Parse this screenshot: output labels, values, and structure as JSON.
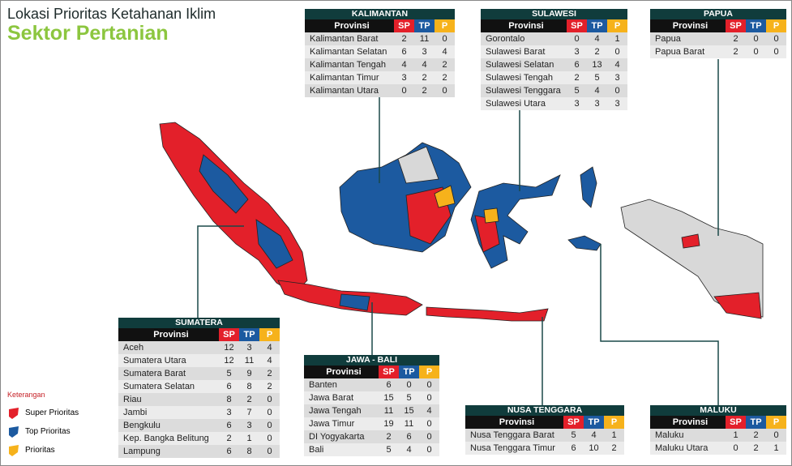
{
  "header": {
    "title": "Lokasi Prioritas Ketahanan Iklim",
    "subtitle": "Sektor Pertanian"
  },
  "columns": [
    "Provinsi",
    "SP",
    "TP",
    "P"
  ],
  "regions": [
    {
      "name": "KALIMANTAN",
      "rows": [
        [
          "Kalimantan Barat",
          2,
          11,
          0
        ],
        [
          "Kalimantan Selatan",
          6,
          3,
          4
        ],
        [
          "Kalimantan Tengah",
          4,
          4,
          2
        ],
        [
          "Kalimantan Timur",
          3,
          2,
          2
        ],
        [
          "Kalimantan Utara",
          0,
          2,
          0
        ]
      ]
    },
    {
      "name": "SULAWESI",
      "rows": [
        [
          "Gorontalo",
          0,
          4,
          1
        ],
        [
          "Sulawesi Barat",
          3,
          2,
          0
        ],
        [
          "Sulawesi Selatan",
          6,
          13,
          4
        ],
        [
          "Sulawesi Tengah",
          2,
          5,
          3
        ],
        [
          "Sulawesi Tenggara",
          5,
          4,
          0
        ],
        [
          "Sulawesi Utara",
          3,
          3,
          3
        ]
      ]
    },
    {
      "name": "PAPUA",
      "rows": [
        [
          "Papua",
          2,
          0,
          0
        ],
        [
          "Papua Barat",
          2,
          0,
          0
        ]
      ]
    },
    {
      "name": "SUMATERA",
      "rows": [
        [
          "Aceh",
          12,
          3,
          4
        ],
        [
          "Sumatera Utara",
          12,
          11,
          4
        ],
        [
          "Sumatera Barat",
          5,
          9,
          2
        ],
        [
          "Sumatera Selatan",
          6,
          8,
          2
        ],
        [
          "Riau",
          8,
          2,
          0
        ],
        [
          "Jambi",
          3,
          7,
          0
        ],
        [
          "Bengkulu",
          6,
          3,
          0
        ],
        [
          "Kep. Bangka Belitung",
          2,
          1,
          0
        ],
        [
          "Lampung",
          6,
          8,
          0
        ]
      ]
    },
    {
      "name": "JAWA - BALI",
      "rows": [
        [
          "Banten",
          6,
          0,
          0
        ],
        [
          "Jawa Barat",
          15,
          5,
          0
        ],
        [
          "Jawa Tengah",
          11,
          15,
          4
        ],
        [
          "Jawa Timur",
          19,
          11,
          0
        ],
        [
          "DI Yogyakarta",
          2,
          6,
          0
        ],
        [
          "Bali",
          5,
          4,
          0
        ]
      ]
    },
    {
      "name": "NUSA TENGGARA",
      "rows": [
        [
          "Nusa Tenggara Barat",
          5,
          4,
          1
        ],
        [
          "Nusa Tenggara Timur",
          6,
          10,
          2
        ]
      ]
    },
    {
      "name": "MALUKU",
      "rows": [
        [
          "Maluku",
          1,
          2,
          0
        ],
        [
          "Maluku Utara",
          0,
          2,
          1
        ]
      ]
    }
  ],
  "legend": {
    "title": "Keterangan",
    "items": [
      "Super Prioritas",
      "Top Prioritas",
      "Prioritas"
    ]
  }
}
